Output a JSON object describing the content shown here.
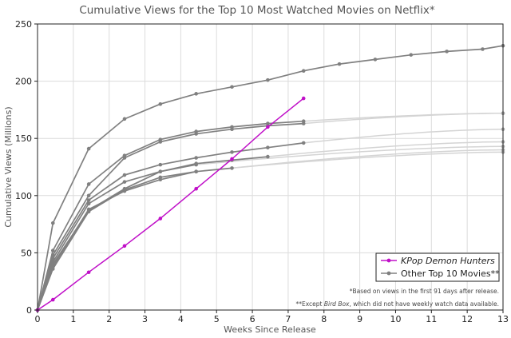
{
  "chart_data": {
    "type": "line",
    "title": "Cumulative Views for the Top 10 Most Watched Movies on Netflix*",
    "xlabel": "Weeks Since Release",
    "ylabel": "Cumulative Views (Millions)",
    "xlim": [
      0,
      13
    ],
    "ylim": [
      0,
      250
    ],
    "xticks": [
      0,
      1,
      2,
      3,
      4,
      5,
      6,
      7,
      8,
      9,
      10,
      11,
      12,
      13
    ],
    "yticks": [
      0,
      50,
      100,
      150,
      200,
      250
    ],
    "grid": true,
    "legend_position": "bottom-right",
    "legend": [
      {
        "label": "KPop Demon Hunters",
        "color": "#c010c8",
        "italic": true
      },
      {
        "label": "Other Top 10 Movies**",
        "color": "#808080",
        "italic": false
      }
    ],
    "notes": [
      "*Based on views in the first 91 days after release.",
      "**Except Bird Box, which did not have weekly watch data available."
    ],
    "series": [
      {
        "name": "KPop Demon Hunters",
        "color": "#c010c8",
        "x": [
          0,
          0.43,
          1.43,
          2.43,
          3.43,
          4.43,
          5.43,
          6.43,
          7.43
        ],
        "y": [
          0,
          9,
          33,
          56,
          80,
          106,
          132,
          160,
          185
        ],
        "extension": null
      },
      {
        "color": "#808080",
        "x": [
          0,
          0.43,
          1.43,
          2.43,
          3.43,
          4.43,
          5.43,
          6.43,
          7.43,
          8.43,
          9.43,
          10.43,
          11.43,
          12.43,
          13
        ],
        "y": [
          0,
          76,
          141,
          167,
          180,
          189,
          195,
          201,
          209,
          215,
          219,
          223,
          226,
          228,
          231
        ],
        "extension": null
      },
      {
        "color": "#808080",
        "x": [
          0,
          0.43,
          1.43,
          2.43,
          3.43,
          4.43,
          5.43,
          6.43,
          7.43
        ],
        "y": [
          0,
          52,
          110,
          135,
          149,
          156,
          160,
          163,
          165
        ],
        "extension": [
          13,
          172
        ]
      },
      {
        "color": "#808080",
        "x": [
          0,
          0.43,
          1.43,
          2.43,
          3.43,
          4.43,
          5.43,
          6.43,
          7.43
        ],
        "y": [
          0,
          48,
          100,
          133,
          147,
          154,
          158,
          161,
          163
        ],
        "extension": [
          13,
          172
        ]
      },
      {
        "color": "#808080",
        "x": [
          0,
          0.43,
          1.43,
          2.43,
          3.43,
          4.43,
          5.43,
          6.43,
          7.43
        ],
        "y": [
          0,
          45,
          96,
          118,
          127,
          133,
          138,
          142,
          146
        ],
        "extension": [
          13,
          158
        ]
      },
      {
        "color": "#808080",
        "x": [
          0,
          0.43,
          1.43,
          2.43,
          3.43,
          4.43,
          5.43,
          6.43
        ],
        "y": [
          0,
          42,
          93,
          112,
          121,
          128,
          131,
          134
        ],
        "extension": [
          13,
          147
        ]
      },
      {
        "color": "#808080",
        "x": [
          0,
          0.43,
          1.43,
          2.43,
          3.43,
          4.43
        ],
        "y": [
          0,
          40,
          87,
          106,
          121,
          127
        ],
        "extension": [
          13,
          143
        ]
      },
      {
        "color": "#808080",
        "x": [
          0,
          0.43,
          1.43,
          2.43,
          3.43,
          4.43,
          5.43
        ],
        "y": [
          0,
          38,
          88,
          104,
          114,
          121,
          124
        ],
        "extension": [
          13,
          140
        ]
      },
      {
        "color": "#808080",
        "x": [
          0,
          0.43,
          1.43,
          2.43,
          3.43,
          4.43
        ],
        "y": [
          0,
          36,
          86,
          105,
          116,
          121
        ],
        "extension": [
          13,
          138
        ]
      }
    ]
  }
}
